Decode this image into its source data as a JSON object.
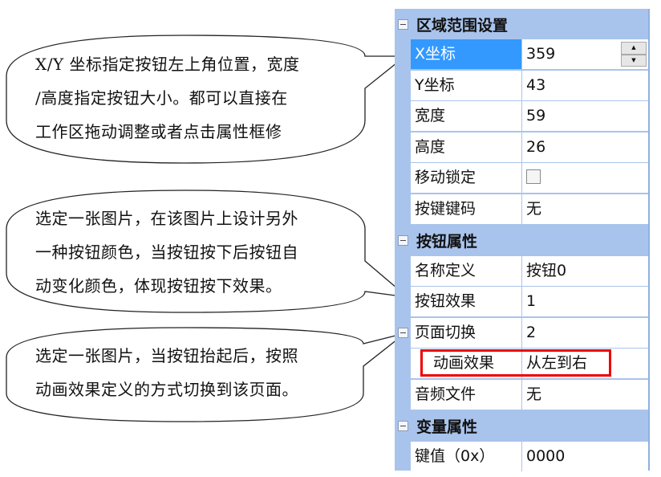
{
  "callouts": [
    {
      "lines": [
        "X/Y 坐标指定按钮左上角位置，宽度",
        "/高度指定按钮大小。都可以直接在",
        "工作区拖动调整或者点击属性框修"
      ]
    },
    {
      "lines": [
        "选定一张图片，在该图片上设计另外",
        "一种按钮颜色，当按钮按下后按钮自",
        "动变化颜色，体现按钮按下效果。"
      ]
    },
    {
      "lines": [
        "选定一张图片，当按钮抬起后，按照",
        "动画效果定义的方式切换到该页面。"
      ]
    }
  ],
  "panel": {
    "sections": [
      {
        "title": "区域范围设置",
        "rows": [
          {
            "name": "X坐标",
            "value": "359"
          },
          {
            "name": "Y坐标",
            "value": "43"
          },
          {
            "name": "宽度",
            "value": "59"
          },
          {
            "name": "高度",
            "value": "26"
          },
          {
            "name": "移动锁定",
            "value": ""
          },
          {
            "name": "按键键码",
            "value": "无"
          }
        ]
      },
      {
        "title": "按钮属性",
        "rows": [
          {
            "name": "名称定义",
            "value": "按钮0"
          },
          {
            "name": "按钮效果",
            "value": "1"
          },
          {
            "name": "页面切换",
            "value": "2"
          },
          {
            "name": "动画效果",
            "value": "从左到右"
          },
          {
            "name": "音频文件",
            "value": "无"
          }
        ]
      },
      {
        "title": "变量属性",
        "rows": [
          {
            "name": "键值（0x）",
            "value": "0000"
          }
        ]
      }
    ],
    "selected_row": "X坐标",
    "move_lock_checked": false,
    "highlight_color": "#e00000",
    "selection_color": "#3399ff",
    "panel_color": "#a9c4ec"
  }
}
